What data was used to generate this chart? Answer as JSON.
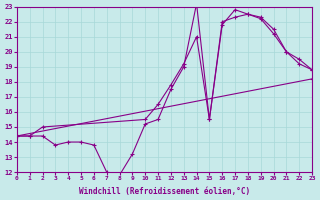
{
  "xlabel": "Windchill (Refroidissement éolien,°C)",
  "xlim": [
    0,
    23
  ],
  "ylim": [
    12,
    23
  ],
  "xticks": [
    0,
    1,
    2,
    3,
    4,
    5,
    6,
    7,
    8,
    9,
    10,
    11,
    12,
    13,
    14,
    15,
    16,
    17,
    18,
    19,
    20,
    21,
    22,
    23
  ],
  "yticks": [
    12,
    13,
    14,
    15,
    16,
    17,
    18,
    19,
    20,
    21,
    22,
    23
  ],
  "color": "#880088",
  "bg_color": "#c8eaea",
  "grid_color": "#a8d8d8",
  "line1_x": [
    0,
    1,
    2,
    3,
    4,
    5,
    6,
    7,
    8,
    9,
    10,
    11,
    12,
    13,
    14,
    15,
    16,
    17,
    18,
    19,
    20,
    21,
    22,
    23
  ],
  "line1_y": [
    14.4,
    14.4,
    14.4,
    13.8,
    14.0,
    14.0,
    13.8,
    12.0,
    11.8,
    13.2,
    15.2,
    15.5,
    17.5,
    19.0,
    23.2,
    15.5,
    21.8,
    22.8,
    22.5,
    22.2,
    21.2,
    20.0,
    19.2,
    18.8
  ],
  "line2_x": [
    0,
    1,
    2,
    10,
    11,
    12,
    13,
    14,
    15,
    16,
    17,
    18,
    19,
    20,
    21,
    22,
    23
  ],
  "line2_y": [
    14.4,
    14.4,
    15.0,
    15.5,
    16.5,
    17.8,
    19.2,
    21.0,
    15.5,
    22.0,
    22.3,
    22.5,
    22.3,
    21.5,
    20.0,
    19.5,
    18.8
  ],
  "line3_x": [
    0,
    23
  ],
  "line3_y": [
    14.4,
    18.2
  ]
}
